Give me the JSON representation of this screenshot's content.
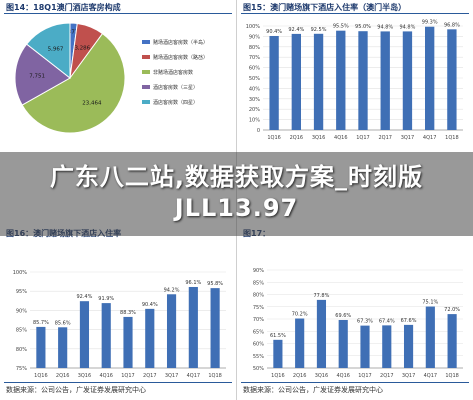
{
  "headline": "广东八二站,数据获取方案_时刻版JLL13.97",
  "colors": {
    "bar": "#3f6fb5",
    "pie": [
      "#4472c4",
      "#c0504d",
      "#9bbb59",
      "#8064a2",
      "#4bacc6"
    ],
    "rule": "#2a5a9a"
  },
  "panels": [
    {
      "title": "图14：18Q1澳门酒店客房构成",
      "source": ""
    },
    {
      "title": "图15：澳门赌场旗下酒店入住率（澳门半岛）",
      "source": ""
    },
    {
      "title": "图16：澳门赌场旗下酒店入住率",
      "source": "数据来源：公司公告，广发证券发展研究中心"
    },
    {
      "title": "图17：",
      "source": "数据来源：公司公告，广发证券发展研究中心"
    }
  ],
  "chart_data": [
    {
      "type": "pie",
      "values": [
        873,
        3286,
        23464,
        7751,
        5967
      ],
      "labels": [
        "873",
        "3,286",
        "23,464",
        "7,751",
        "5,967"
      ],
      "legend": [
        "赌场酒店客房数（半岛）",
        "赌场酒店客房数（路氹）",
        "非赌场酒店客房数",
        "酒店客房数（三星）",
        "酒店客房数（四星）"
      ],
      "legend_position": "right"
    },
    {
      "type": "bar",
      "categories": [
        "1Q16",
        "2Q16",
        "3Q16",
        "4Q16",
        "1Q17",
        "2Q17",
        "3Q17",
        "4Q17",
        "1Q18"
      ],
      "values": [
        90.4,
        92.4,
        92.5,
        95.5,
        95.0,
        94.8,
        94.8,
        99.3,
        96.8
      ],
      "data_labels": [
        "90.4%",
        "92.4%",
        "92.5%",
        "95.5%",
        "95.0%",
        "94.8%",
        "94.8%",
        "99.3%",
        "96.8%"
      ],
      "ylim": [
        0,
        100
      ],
      "yticks": [
        "0",
        "10%",
        "20%",
        "30%",
        "40%",
        "50%",
        "60%",
        "70%",
        "80%",
        "90%",
        "100%"
      ]
    },
    {
      "type": "bar",
      "categories": [
        "1Q16",
        "2Q16",
        "3Q16",
        "4Q16",
        "1Q17",
        "2Q17",
        "3Q17",
        "4Q17",
        "1Q18"
      ],
      "values": [
        85.7,
        85.6,
        92.4,
        91.9,
        88.3,
        90.4,
        94.2,
        96.1,
        95.8
      ],
      "data_labels": [
        "85.7%",
        "85.6%",
        "92.4%",
        "91.9%",
        "88.3%",
        "90.4%",
        "94.2%",
        "96.1%",
        "95.8%"
      ],
      "ylim": [
        75,
        100
      ],
      "yticks": [
        "75%",
        "80%",
        "85%",
        "90%",
        "95%",
        "100%"
      ]
    },
    {
      "type": "bar",
      "categories": [
        "1Q16",
        "2Q16",
        "3Q16",
        "4Q16",
        "1Q17",
        "2Q17",
        "3Q17",
        "4Q17",
        "1Q18"
      ],
      "values": [
        61.5,
        70.2,
        77.8,
        69.6,
        67.3,
        67.4,
        67.6,
        75.1,
        72.0
      ],
      "data_labels": [
        "61.5%",
        "70.2%",
        "77.8%",
        "69.6%",
        "67.3%",
        "67.4%",
        "67.6%",
        "75.1%",
        "72.0%"
      ],
      "ylim": [
        50,
        90
      ],
      "yticks": [
        "50%",
        "55%",
        "60%",
        "65%",
        "70%",
        "75%",
        "80%",
        "85%",
        "90%"
      ]
    }
  ]
}
